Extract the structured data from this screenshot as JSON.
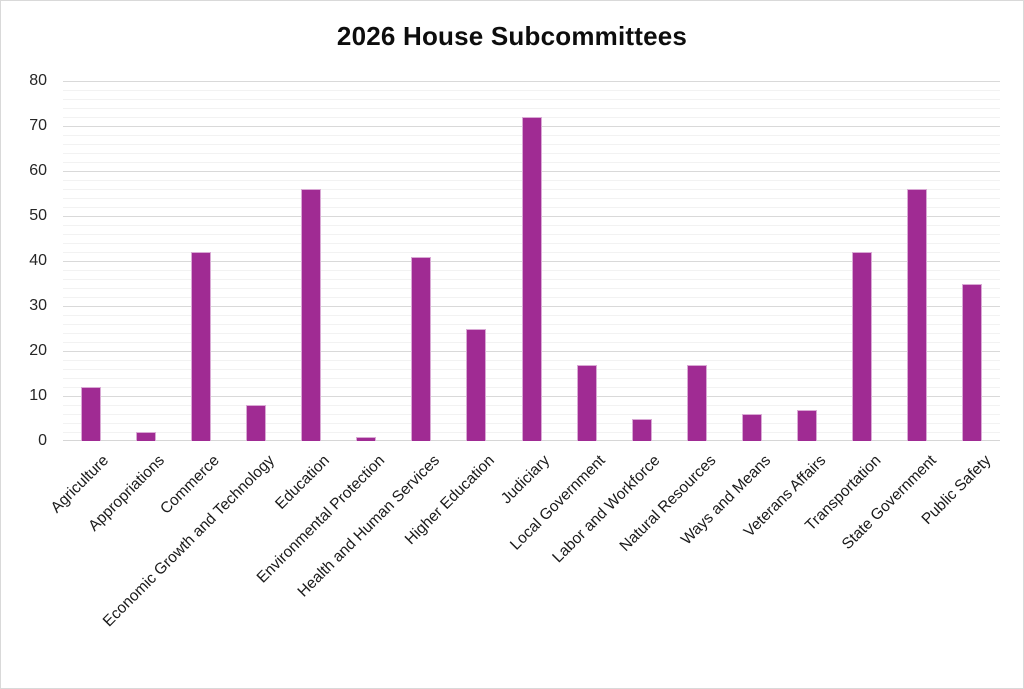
{
  "chart_data": {
    "type": "bar",
    "title": "2026 House Subcommittees",
    "categories": [
      "Agriculture",
      "Appropriations",
      "Commerce",
      "Economic Growth and Technology",
      "Education",
      "Environmental Protection",
      "Health and Human Services",
      "Higher Education",
      "Judiciary",
      "Local Government",
      "Labor and Workforce",
      "Natural Resources",
      "Ways and Means",
      "Veterans Affairs",
      "Transportation",
      "State Government",
      "Public Safety"
    ],
    "values": [
      12,
      2,
      42,
      8,
      56,
      1,
      41,
      25,
      72,
      17,
      5,
      17,
      6,
      7,
      42,
      56,
      35
    ],
    "xlabel": "",
    "ylabel": "",
    "ylim": [
      0,
      80
    ],
    "y_major_unit": 10,
    "y_minor_unit": 2,
    "y_ticks": [
      "0",
      "10",
      "20",
      "30",
      "40",
      "50",
      "60",
      "70",
      "80"
    ],
    "grid": "horizontal major+minor",
    "legend_position": "none",
    "bar_color": "#A02B93",
    "bar_border_color": "#D9A9D4",
    "major_gridline_color": "#D9D9D9",
    "minor_gridline_color": "#F2F2F2",
    "axis_line_color": "#D6D6D6",
    "tick_label_color": "#262626",
    "title_color": "#0D0D0D"
  }
}
